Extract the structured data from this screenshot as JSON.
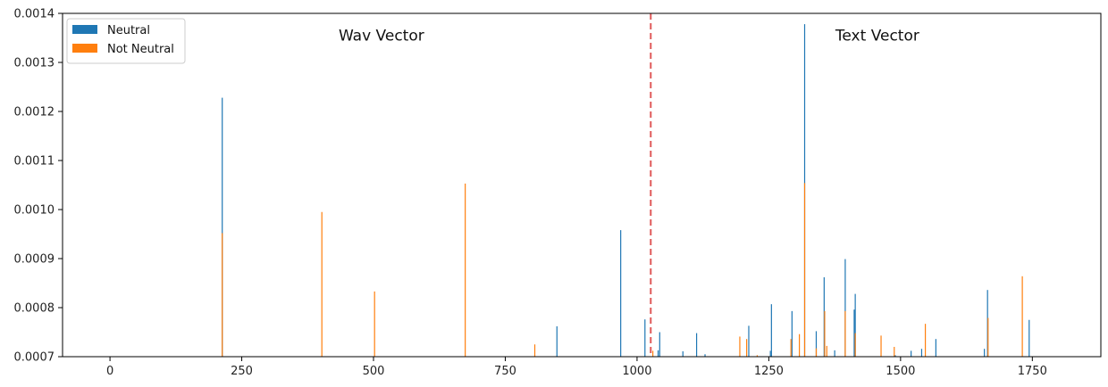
{
  "chart_data": {
    "type": "bar",
    "title": "",
    "xlabel": "",
    "ylabel": "",
    "xlim": [
      -90,
      1880
    ],
    "ylim": [
      0.0007,
      0.0014
    ],
    "x_ticks": [
      0,
      250,
      500,
      750,
      1000,
      1250,
      1500,
      1750
    ],
    "y_ticks": [
      0.0007,
      0.0008,
      0.0009,
      0.001,
      0.0011,
      0.0012,
      0.0013,
      0.0014
    ],
    "y_tick_labels": [
      "0.0007",
      "0.0008",
      "0.0009",
      "0.0010",
      "0.0011",
      "0.0012",
      "0.0013",
      "0.0014"
    ],
    "grid": false,
    "legend_position": "top-left",
    "divider": {
      "x": 1026,
      "color": "#e05a5a",
      "style": "dashed"
    },
    "annotations": [
      {
        "text": "Wav Vector",
        "x": 515,
        "y": 0.001345
      },
      {
        "text": "Text Vector",
        "x": 1456,
        "y": 0.001345
      }
    ],
    "series": [
      {
        "name": "Neutral",
        "color": "#1f77b4",
        "points": [
          [
            213,
            0.001228
          ],
          [
            848,
            0.000762
          ],
          [
            969,
            0.000958
          ],
          [
            1015,
            0.000776
          ],
          [
            1040,
            0.000713
          ],
          [
            1043,
            0.00075
          ],
          [
            1087,
            0.000711
          ],
          [
            1113,
            0.000748
          ],
          [
            1129,
            0.000705
          ],
          [
            1212,
            0.000763
          ],
          [
            1253,
            0.000712
          ],
          [
            1255,
            0.000807
          ],
          [
            1294,
            0.000793
          ],
          [
            1318,
            0.001378
          ],
          [
            1340,
            0.000752
          ],
          [
            1355,
            0.000862
          ],
          [
            1375,
            0.000713
          ],
          [
            1395,
            0.000899
          ],
          [
            1412,
            0.000796
          ],
          [
            1414,
            0.000828
          ],
          [
            1490,
            0.000703
          ],
          [
            1520,
            0.000712
          ],
          [
            1540,
            0.000716
          ],
          [
            1567,
            0.000736
          ],
          [
            1659,
            0.000716
          ],
          [
            1665,
            0.000836
          ],
          [
            1744,
            0.000775
          ]
        ]
      },
      {
        "name": "Not Neutral",
        "color": "#ff7f0e",
        "points": [
          [
            213,
            0.000952
          ],
          [
            402,
            0.000995
          ],
          [
            502,
            0.000833
          ],
          [
            674,
            0.001053
          ],
          [
            806,
            0.000725
          ],
          [
            1030,
            0.000712
          ],
          [
            1195,
            0.000741
          ],
          [
            1208,
            0.000736
          ],
          [
            1228,
            0.000703
          ],
          [
            1292,
            0.000736
          ],
          [
            1308,
            0.000746
          ],
          [
            1318,
            0.001054
          ],
          [
            1340,
            0.000717
          ],
          [
            1356,
            0.000793
          ],
          [
            1360,
            0.000722
          ],
          [
            1395,
            0.000793
          ],
          [
            1414,
            0.000748
          ],
          [
            1463,
            0.000743
          ],
          [
            1488,
            0.00072
          ],
          [
            1547,
            0.000767
          ],
          [
            1666,
            0.000779
          ],
          [
            1731,
            0.000864
          ]
        ]
      }
    ]
  }
}
